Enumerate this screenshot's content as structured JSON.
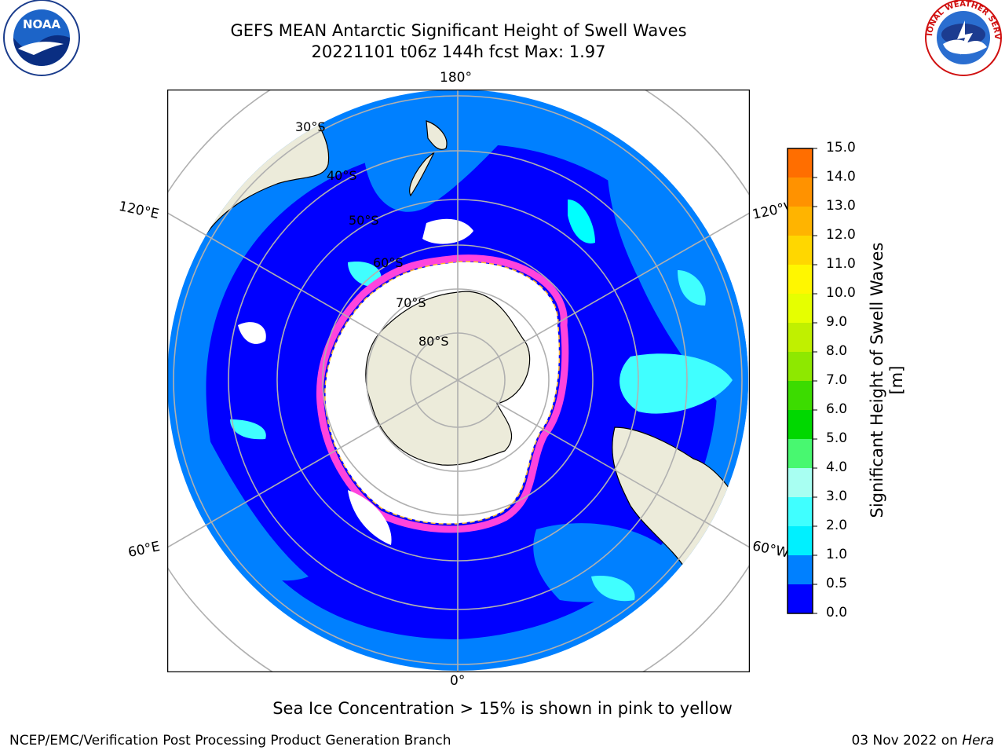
{
  "title": {
    "line1": "GEFS MEAN Antarctic Significant Height of Swell Waves",
    "line2": "20221101 t06z 144h fcst   Max: 1.97"
  },
  "map": {
    "projection": "south-polar-stereographic",
    "longitude_labels": {
      "top": "180°",
      "bottom": "0°",
      "left_upper": "120°E",
      "left_lower": "60°E",
      "right_upper": "120°W",
      "right_lower": "60°W"
    },
    "latitude_labels": [
      "30°S",
      "40°S",
      "50°S",
      "60°S",
      "70°S",
      "80°S"
    ]
  },
  "colorbar": {
    "label": "Significant Height of Swell Waves [m]",
    "ticks": [
      "15.0",
      "14.0",
      "13.0",
      "12.0",
      "11.0",
      "10.0",
      "9.0",
      "8.0",
      "7.0",
      "6.0",
      "5.0",
      "4.0",
      "3.0",
      "2.0",
      "1.0",
      "0.5",
      "0.0"
    ],
    "colors": [
      "#ff0000",
      "#ff2400",
      "#ff4a00",
      "#ff6e00",
      "#ff9200",
      "#ffb400",
      "#ffd700",
      "#fff700",
      "#e6ff00",
      "#c0f000",
      "#8ee800",
      "#3cdc00",
      "#00d800",
      "#48f870",
      "#a8fff2",
      "#40ffff",
      "#00f0ff",
      "#0080ff",
      "#0000ff"
    ],
    "ocean_colors": {
      "below_0_5": "#0000ff",
      "0_5_to_1": "#0080ff",
      "1_to_1_5": "#00ffff",
      "1_5_to_2": "#40ffff"
    }
  },
  "footer": {
    "note": "Sea Ice Concentration > 15% is shown in pink to yellow",
    "credit": "NCEP/EMC/Verification Post Processing Product Generation Branch",
    "date_prefix": "03 Nov 2022 on ",
    "date_host": "Hera"
  },
  "logos": {
    "left": "NOAA",
    "right": "NATIONAL WEATHER SERVICE"
  }
}
